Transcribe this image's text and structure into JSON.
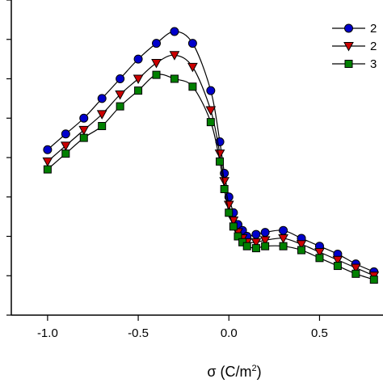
{
  "chart_data": {
    "type": "line",
    "xlabel": {
      "prefix": "σ (C/m",
      "sup": "2",
      "suffix": ")"
    },
    "xlim": [
      -1.2,
      0.85
    ],
    "ylim": [
      0,
      8
    ],
    "x_ticks": [
      -1.0,
      -0.5,
      0.0,
      0.5
    ],
    "x_tick_labels": [
      "-1.0",
      "-0.5",
      "0.0",
      "0.5"
    ],
    "y_ticks": [
      0,
      1,
      2,
      3,
      4,
      5,
      6,
      7,
      8
    ],
    "legend_position": "top-right",
    "series": [
      {
        "name": "2",
        "marker": "circle",
        "color": "#0000cc",
        "x": [
          -1.0,
          -0.9,
          -0.8,
          -0.7,
          -0.6,
          -0.5,
          -0.4,
          -0.3,
          -0.2,
          -0.1,
          -0.05,
          -0.025,
          0.0,
          0.025,
          0.05,
          0.075,
          0.1,
          0.15,
          0.2,
          0.3,
          0.4,
          0.5,
          0.6,
          0.7,
          0.8
        ],
        "y": [
          4.2,
          4.6,
          5.0,
          5.5,
          6.0,
          6.5,
          6.9,
          7.2,
          6.9,
          5.7,
          4.4,
          3.6,
          3.0,
          2.6,
          2.3,
          2.15,
          2.0,
          2.05,
          2.1,
          2.15,
          1.95,
          1.75,
          1.55,
          1.3,
          1.1
        ]
      },
      {
        "name": "2",
        "marker": "triangle-down",
        "color": "#cc0000",
        "x": [
          -1.0,
          -0.9,
          -0.8,
          -0.7,
          -0.6,
          -0.5,
          -0.4,
          -0.3,
          -0.2,
          -0.1,
          -0.05,
          -0.025,
          0.0,
          0.025,
          0.05,
          0.075,
          0.1,
          0.15,
          0.2,
          0.3,
          0.4,
          0.5,
          0.6,
          0.7,
          0.8
        ],
        "y": [
          3.9,
          4.3,
          4.7,
          5.1,
          5.6,
          6.0,
          6.4,
          6.6,
          6.3,
          5.2,
          4.1,
          3.4,
          2.8,
          2.4,
          2.1,
          1.95,
          1.85,
          1.85,
          1.9,
          1.95,
          1.8,
          1.6,
          1.4,
          1.2,
          1.0
        ]
      },
      {
        "name": "3",
        "marker": "square",
        "color": "#008000",
        "x": [
          -1.0,
          -0.9,
          -0.8,
          -0.7,
          -0.6,
          -0.5,
          -0.4,
          -0.3,
          -0.2,
          -0.1,
          -0.05,
          -0.025,
          0.0,
          0.025,
          0.05,
          0.075,
          0.1,
          0.15,
          0.2,
          0.3,
          0.4,
          0.5,
          0.6,
          0.7,
          0.8
        ],
        "y": [
          3.7,
          4.1,
          4.5,
          4.8,
          5.3,
          5.7,
          6.1,
          6.0,
          5.8,
          4.9,
          3.9,
          3.2,
          2.6,
          2.25,
          2.0,
          1.85,
          1.75,
          1.7,
          1.75,
          1.75,
          1.65,
          1.45,
          1.25,
          1.05,
          0.9
        ]
      }
    ]
  }
}
